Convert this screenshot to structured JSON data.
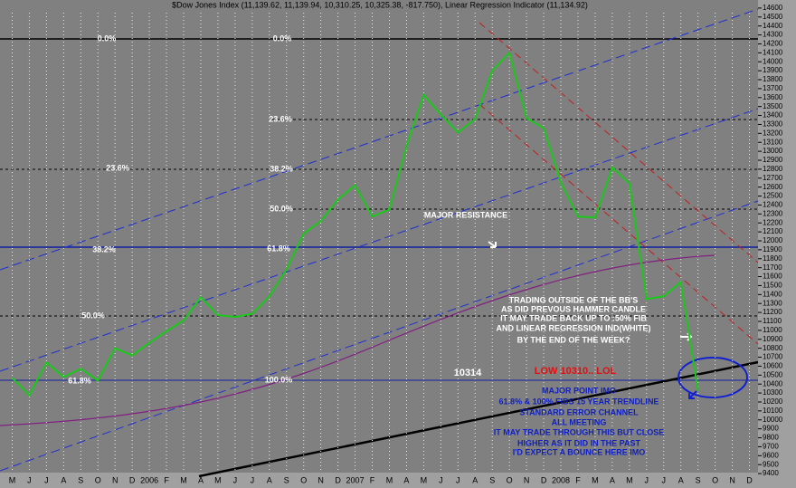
{
  "chart_data": {
    "type": "line",
    "title": "$Dow Jones Index (11,139.62, 11,139.94, 10,310.25, 10,325.38, -817.750), Linear Regression Indicator (11,134.92)",
    "categories": [
      "M",
      "J",
      "J",
      "A",
      "S",
      "O",
      "N",
      "D",
      "2006",
      "F",
      "M",
      "A",
      "M",
      "J",
      "J",
      "A",
      "S",
      "O",
      "N",
      "D",
      "2007",
      "F",
      "M",
      "A",
      "M",
      "J",
      "J",
      "A",
      "S",
      "O",
      "N",
      "D",
      "2008",
      "F",
      "M",
      "A",
      "M",
      "J",
      "J",
      "A",
      "S",
      "O",
      "N",
      "D"
    ],
    "series": [
      {
        "color": "#19c819",
        "values": [
          10470,
          10275,
          10640,
          10480,
          10570,
          10440,
          10800,
          10720,
          10860,
          10990,
          11110,
          11370,
          11170,
          11150,
          11185,
          11380,
          11680,
          12080,
          12220,
          12460,
          12620,
          12270,
          12350,
          13060,
          13630,
          13410,
          13210,
          13360,
          13900,
          14100,
          13370,
          13260,
          12650,
          12270,
          12260,
          12820,
          12640,
          11350,
          11380,
          11540,
          10325,
          null,
          null,
          null
        ]
      }
    ],
    "ylim": [
      9330,
      14690
    ],
    "yticks": [
      9400,
      9500,
      9600,
      9700,
      9800,
      9900,
      10000,
      10100,
      10200,
      10300,
      10400,
      10500,
      10600,
      10700,
      10800,
      10900,
      11000,
      11100,
      11200,
      11300,
      11400,
      11500,
      11600,
      11700,
      11800,
      11900,
      12000,
      12100,
      12200,
      12300,
      12400,
      12500,
      12600,
      12700,
      12800,
      12900,
      13000,
      13100,
      13200,
      13300,
      13400,
      13500,
      13600,
      13700,
      13800,
      13900,
      14000,
      14100,
      14200,
      14300,
      14400,
      14500,
      14600
    ],
    "grid": true,
    "annotations": [
      {
        "text": "0.0%"
      },
      {
        "text": "23.6%"
      },
      {
        "text": "38.2%"
      },
      {
        "text": "50.0%"
      },
      {
        "text": "61.8%"
      },
      {
        "text": "0.0%"
      },
      {
        "text": "23.6%"
      },
      {
        "text": "38.2%"
      },
      {
        "text": "50.0%"
      },
      {
        "text": "61.8%"
      },
      {
        "text": "100.0%"
      },
      {
        "text": "MAJOR RESISTANCE"
      },
      {
        "text": "TRADING OUTSIDE OF THE BB'S"
      },
      {
        "text": "AS DID PREVOUS HAMMER CANDLE"
      },
      {
        "text": "IT MAY TRADE BACK UP TO :50% FIB"
      },
      {
        "text": "AND LINEAR REGRESSION IND(WHITE)"
      },
      {
        "text": "BY THE END OF THE WEEK?"
      },
      {
        "text": "10314"
      },
      {
        "text": "LOW 10310.. LOL"
      },
      {
        "text": "MAJOR POINT IMO"
      },
      {
        "text": "61.8% & 100% FIBS 15 YEAR TRENDLINE"
      },
      {
        "text": "STANDARD ERROR CHANNEL"
      },
      {
        "text": "ALL MEETING"
      },
      {
        "text": "IT MAY TRADE THROUGH THIS BUT CLOSE"
      },
      {
        "text": "HIGHER AS IT DID IN THE PAST"
      },
      {
        "text": "I'D EXPECT A BOUNCE HERE IMO"
      }
    ]
  }
}
